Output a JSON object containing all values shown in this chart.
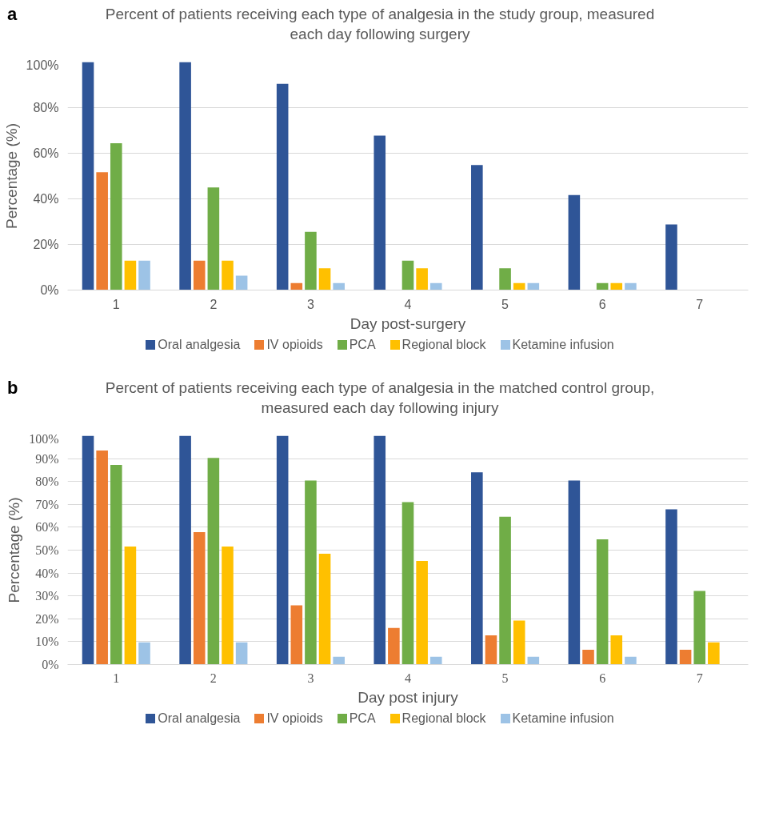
{
  "chart_data": [
    {
      "type": "bar",
      "title": "Percent of patients receiving each type of analgesia in the study group, measured each day following surgery",
      "xlabel": "Day post-surgery",
      "ylabel": "Percentage (%)",
      "annotations": [
        "a"
      ],
      "categories": [
        "1",
        "2",
        "3",
        "4",
        "5",
        "6",
        "7"
      ],
      "series": [
        {
          "name": "Oral analgesia",
          "color": "#2f5597",
          "values": [
            100,
            100,
            90.4,
            67.7,
            54.8,
            41.7,
            28.8
          ]
        },
        {
          "name": "IV opioids",
          "color": "#ed7d31",
          "values": [
            51.7,
            12.9,
            3.1,
            0,
            0,
            0,
            0
          ]
        },
        {
          "name": "PCA",
          "color": "#70ad47",
          "values": [
            64.4,
            45,
            25.5,
            12.9,
            9.6,
            3.1,
            0
          ]
        },
        {
          "name": "Regional block",
          "color": "#ffc000",
          "values": [
            12.9,
            12.9,
            9.6,
            9.6,
            3.1,
            3.1,
            0
          ]
        },
        {
          "name": "Ketamine infusion",
          "color": "#9dc3e6",
          "values": [
            12.9,
            6.3,
            3.1,
            3.1,
            3.1,
            3.1,
            0
          ]
        }
      ],
      "ylim": [
        0,
        100
      ],
      "yticks": [
        {
          "value": 0,
          "label": "0%"
        },
        {
          "value": 20,
          "label": "20%"
        },
        {
          "value": 40,
          "label": "40%"
        },
        {
          "value": 60,
          "label": "60%"
        },
        {
          "value": 80,
          "label": "80%"
        },
        {
          "value": 100,
          "label": "100%"
        }
      ],
      "grid": "y",
      "legend": "bottom"
    },
    {
      "type": "bar",
      "title": "Percent of patients receiving each type of analgesia in the matched control group, measured each day following injury",
      "xlabel": "Day post injury",
      "ylabel": "Percentage (%)",
      "annotations": [
        "b"
      ],
      "categories": [
        "1",
        "2",
        "3",
        "4",
        "5",
        "6",
        "7"
      ],
      "series": [
        {
          "name": "Oral analgesia",
          "color": "#2f5597",
          "values": [
            100,
            100,
            100,
            100,
            84,
            80.4,
            67.8
          ]
        },
        {
          "name": "IV opioids",
          "color": "#ed7d31",
          "values": [
            93.5,
            57.9,
            25.9,
            16,
            12.8,
            6.5,
            6.5
          ]
        },
        {
          "name": "PCA",
          "color": "#70ad47",
          "values": [
            87.2,
            90.3,
            80.4,
            71,
            64.6,
            54.7,
            32.2
          ]
        },
        {
          "name": "Regional block",
          "color": "#ffc000",
          "values": [
            51.6,
            51.6,
            48.4,
            45.3,
            19.2,
            12.8,
            9.7
          ]
        },
        {
          "name": "Ketamine infusion",
          "color": "#9dc3e6",
          "values": [
            9.7,
            9.7,
            3.4,
            3.4,
            3.4,
            3.4,
            0
          ]
        }
      ],
      "ylim": [
        0,
        100
      ],
      "yticks": [
        {
          "value": 0,
          "label": "0%"
        },
        {
          "value": 10,
          "label": "10%"
        },
        {
          "value": 20,
          "label": "20%"
        },
        {
          "value": 30,
          "label": "30%"
        },
        {
          "value": 40,
          "label": "40%"
        },
        {
          "value": 50,
          "label": "50%"
        },
        {
          "value": 60,
          "label": "60%"
        },
        {
          "value": 70,
          "label": "70%"
        },
        {
          "value": 80,
          "label": "80%"
        },
        {
          "value": 90,
          "label": "90%"
        },
        {
          "value": 100,
          "label": "100%"
        }
      ],
      "grid": "y",
      "legend": "bottom"
    }
  ]
}
